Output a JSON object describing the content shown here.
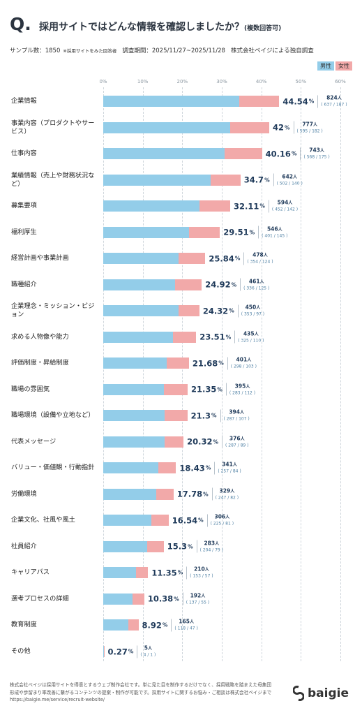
{
  "chart_data": {
    "type": "stacked_bar_horizontal",
    "title_mark": "Q.",
    "title": "採用サイトではどんな情報を確認しましたか？",
    "title_note": "(複数回答可)",
    "meta": [
      "サンプル数：1850",
      "※採用サイトをみた回答者",
      "調査期間：2025/11/27~2025/11/28",
      "株式会社ベイジによる独自調査"
    ],
    "unit": "%",
    "count_unit": "人",
    "categories": [
      "企業情報",
      "事業内容（プロダクトやサービス）",
      "仕事内容",
      "業績情報（売上や財務状況など）",
      "募集要項",
      "福利厚生",
      "経営計画や事業計画",
      "職種紹介",
      "企業理念・ミッション・ビジョン",
      "求める人物像や能力",
      "評価制度・昇給制度",
      "職場の雰囲気",
      "職場環境（設備や立地など）",
      "代表メッセージ",
      "バリュー・価値観・行動指針",
      "労働環境",
      "企業文化、社風や風土",
      "社員紹介",
      "キャリアパス",
      "選考プロセスの詳細",
      "教育制度",
      "その他"
    ],
    "series": [
      {
        "name": "男性",
        "color": "#93cde9",
        "values": [
          34.43,
          32.16,
          30.7,
          27.14,
          24.43,
          21.68,
          19.14,
          18.16,
          19.08,
          17.57,
          16.11,
          15.3,
          15.51,
          15.51,
          13.89,
          13.35,
          12.16,
          11.03,
          8.27,
          7.41,
          6.38,
          0.22
        ]
      },
      {
        "name": "女性",
        "color": "#f2a9a9",
        "values": [
          10.11,
          9.84,
          9.46,
          7.57,
          7.68,
          7.84,
          6.7,
          6.76,
          5.24,
          5.95,
          5.57,
          6.05,
          5.78,
          4.81,
          4.54,
          4.43,
          4.38,
          4.27,
          3.08,
          2.97,
          2.54,
          0.05
        ]
      }
    ],
    "totals": [
      44.54,
      42,
      40.16,
      34.7,
      32.11,
      29.51,
      25.84,
      24.92,
      24.32,
      23.51,
      21.68,
      21.35,
      21.3,
      20.32,
      18.43,
      17.78,
      16.54,
      15.3,
      11.35,
      10.38,
      8.92,
      0.27
    ],
    "counts": [
      824,
      777,
      743,
      642,
      594,
      546,
      478,
      461,
      450,
      435,
      401,
      395,
      394,
      376,
      341,
      329,
      306,
      283,
      210,
      192,
      165,
      5
    ],
    "breakdown_labels": [
      "( 637 / 187 )",
      "( 595 / 182 )",
      "( 568 / 175 )",
      "( 502 / 140 )",
      "( 452 / 142 )",
      "( 401 / 145 )",
      "( 354 / 124 )",
      "( 336 / 125 )",
      "( 353 / 97 )",
      "( 325 / 110 )",
      "( 298 / 103 )",
      "( 283 / 112 )",
      "( 287 / 107 )",
      "( 287 / 89 )",
      "( 257 / 84 )",
      "( 247 / 82 )",
      "( 225 / 81 )",
      "( 204 / 79 )",
      "( 153 / 57 )",
      "( 137 / 55 )",
      "( 118 / 47 )",
      "( 4 / 1 )"
    ],
    "xlim": [
      0,
      60
    ],
    "xticks": [
      {
        "value": 0,
        "label": "0%"
      },
      {
        "value": 10,
        "label": "10%"
      },
      {
        "value": 20,
        "label": "20%"
      },
      {
        "value": 30,
        "label": "30%"
      },
      {
        "value": 40,
        "label": "40%"
      },
      {
        "value": 50,
        "label": "50%"
      },
      {
        "value": 60,
        "label": "60%"
      }
    ],
    "grid": true,
    "footer": [
      "株式会社ベイジは採用サイトを得意とするウェブ制作会社です。単に見た目を制作するだけでなく、採用戦略を踏まえた母集団",
      "形成や歩留まり率改善に繋がるコンテンツの提案・制作が可能です。採用サイトに関するお悩み・ご相談は株式会社ベイジまで",
      "https://baigie.me/service/recruit-website/"
    ],
    "logo": "baigie"
  }
}
